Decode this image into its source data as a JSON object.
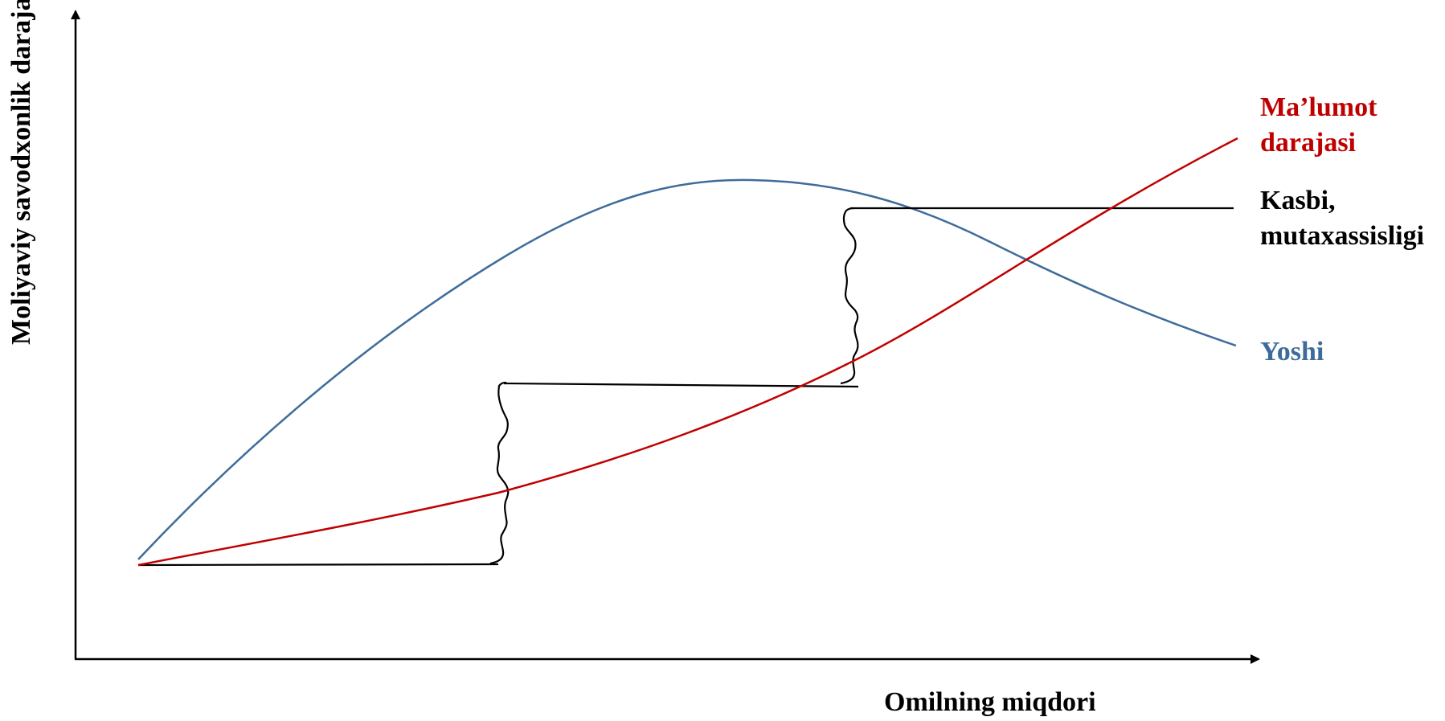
{
  "diagram": {
    "ylabel": "Moliyaviy savodxonlik darajasi",
    "xlabel": "Omilning miqdori",
    "series": [
      {
        "name": "Ma’lumot darajasi",
        "lines": [
          "Ma’lumot",
          "darajasi"
        ],
        "color": "#c00000",
        "shape": "rising-convex"
      },
      {
        "name": "Kasbi, mutaxassisligi",
        "lines": [
          "Kasbi,",
          "mutaxassisligi"
        ],
        "color": "#000000",
        "shape": "step"
      },
      {
        "name": "Yoshi",
        "lines": [
          "Yoshi"
        ],
        "color": "#3e6c9a",
        "shape": "hump"
      }
    ]
  }
}
